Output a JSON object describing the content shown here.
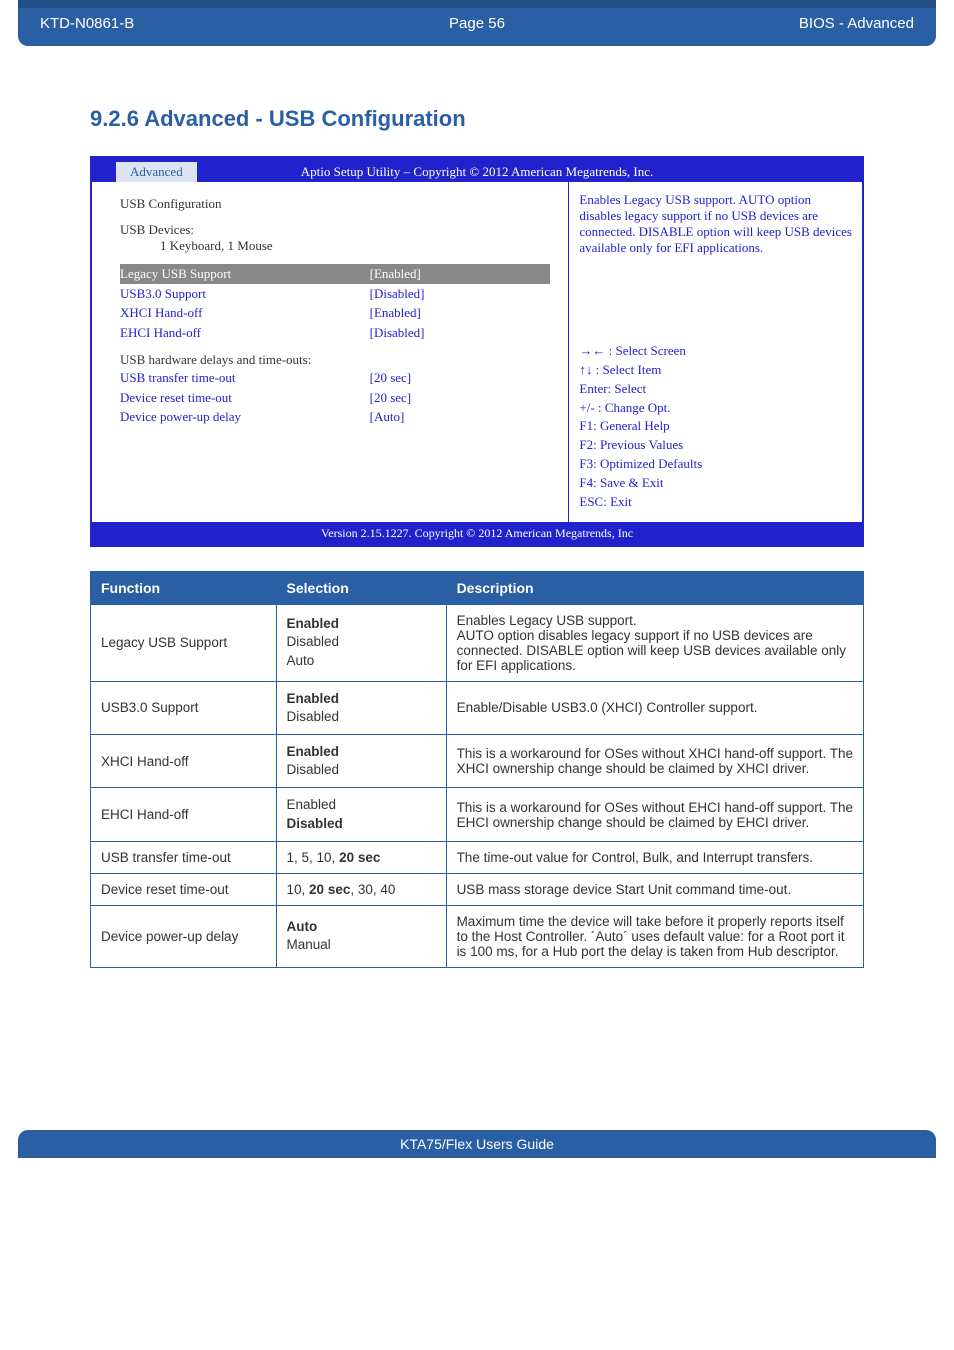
{
  "header": {
    "doc_id": "KTD-N0861-B",
    "page_label": "Page 56",
    "crumb": "BIOS  - Advanced"
  },
  "section": {
    "number_title": "9.2.6  Advanced  -  USB Configuration"
  },
  "bios": {
    "utility_title": "Aptio Setup Utility  –  Copyright © 2012 American Megatrends, Inc.",
    "tab": "Advanced",
    "footer": "Version 2.15.1227. Copyright © 2012 American Megatrends, Inc",
    "left": {
      "heading": "USB Configuration",
      "devices_label": "USB Devices:",
      "devices_value": "1 Keyboard, 1 Mouse",
      "rows": [
        {
          "label": "Legacy USB Support",
          "value": "[Enabled]",
          "selected": true
        },
        {
          "label": "USB3.0 Support",
          "value": "[Disabled]",
          "selected": false
        },
        {
          "label": "XHCI Hand-off",
          "value": "[Enabled]",
          "selected": false
        },
        {
          "label": "EHCI Hand-off",
          "value": "[Disabled]",
          "selected": false
        }
      ],
      "hw_heading": "USB hardware delays and time-outs:",
      "hw_rows": [
        {
          "label": "USB transfer time-out",
          "value": "[20 sec]"
        },
        {
          "label": "Device reset time-out",
          "value": "[20 sec]"
        },
        {
          "label": "Device power-up delay",
          "value": "[Auto]"
        }
      ]
    },
    "help_text": "Enables Legacy USB support. AUTO option disables legacy support if no USB devices are connected. DISABLE option will keep USB devices available only for EFI applications.",
    "keys": {
      "k1": "→← : Select Screen",
      "k2": "↑↓ : Select Item",
      "k3": "Enter: Select",
      "k4": "+/- : Change Opt.",
      "k5": "F1: General Help",
      "k6": "F2: Previous Values",
      "k7": "F3: Optimized Defaults",
      "k8": "F4: Save & Exit",
      "k9": "ESC: Exit"
    }
  },
  "table": {
    "headers": {
      "c1": "Function",
      "c2": "Selection",
      "c3": "Description"
    },
    "rows": [
      {
        "func": "Legacy USB Support",
        "sel_html": "<span class='opt'><b>Enabled</b></span><span class='opt'>Disabled</span><span class='opt'>Auto</span>",
        "desc": "Enables Legacy USB support.\nAUTO option disables legacy support if no USB devices are connected. DISABLE option will keep USB devices available only for EFI applications."
      },
      {
        "func": "USB3.0 Support",
        "sel_html": "<span class='opt'><b>Enabled</b></span><span class='opt'>Disabled</span>",
        "desc": "Enable/Disable USB3.0 (XHCI) Controller support."
      },
      {
        "func": "XHCI Hand-off",
        "sel_html": "<span class='opt'><b>Enabled</b></span><span class='opt'>Disabled</span>",
        "desc": "This is a workaround for OSes without XHCI hand-off support. The XHCI ownership change should be claimed by XHCI driver."
      },
      {
        "func": "EHCI Hand-off",
        "sel_html": "<span class='opt'>Enabled</span><span class='opt'><b>Disabled</b></span>",
        "desc": "This is a workaround for OSes without EHCI hand-off support. The EHCI ownership change should be claimed by EHCI driver."
      },
      {
        "func": "USB transfer time-out",
        "sel_html": "1, 5, 10, <b>20 sec</b>",
        "desc": "The time-out value for Control, Bulk, and Interrupt transfers."
      },
      {
        "func": "Device reset time-out",
        "sel_html": "10, <b>20 sec</b>, 30, 40",
        "desc": "USB mass storage device Start Unit command time-out."
      },
      {
        "func": "Device power-up delay",
        "sel_html": "<span class='opt'><b>Auto</b></span><span class='opt'>Manual</span>",
        "desc": "Maximum time the device will take before it properly reports itself to the Host Controller. ´Auto´ uses default value: for a Root port it is 100 ms, for a Hub port the delay is taken from Hub descriptor."
      }
    ]
  },
  "footer": {
    "guide": "KTA75/Flex Users Guide"
  }
}
